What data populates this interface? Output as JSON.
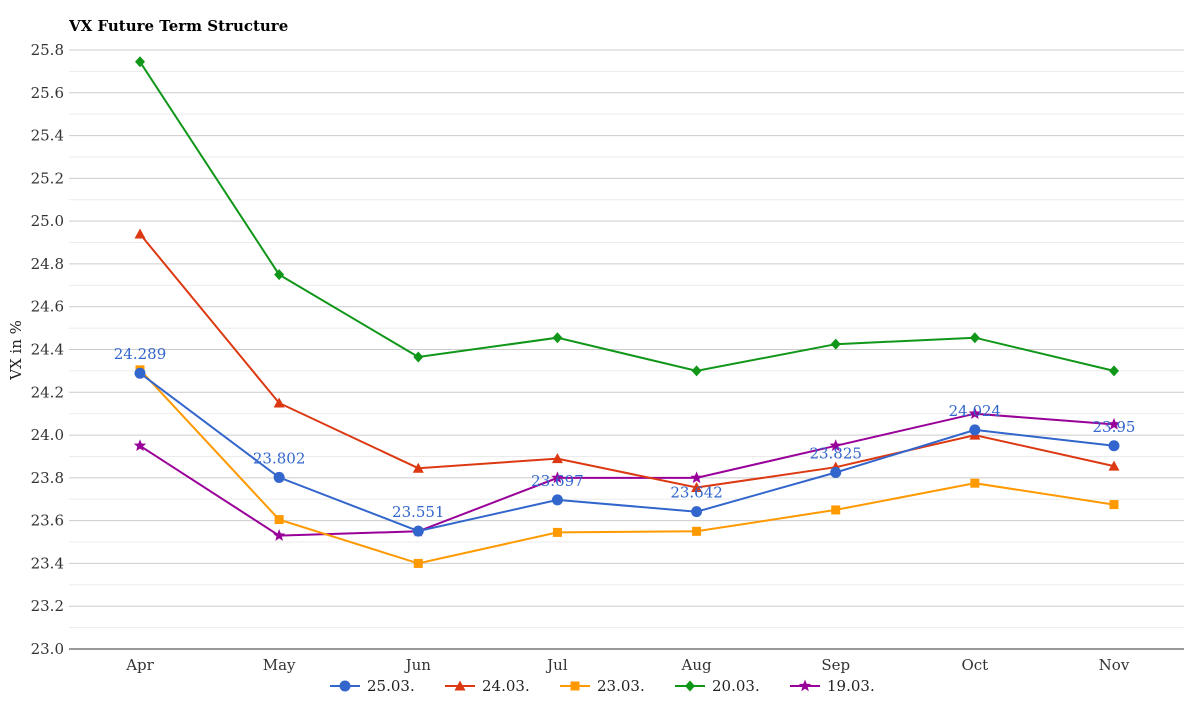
{
  "chart_data": {
    "type": "line",
    "title": "VX Future Term Structure",
    "xlabel": "",
    "ylabel": "VX in %",
    "categories": [
      "Apr",
      "May",
      "Jun",
      "Jul",
      "Aug",
      "Sep",
      "Oct",
      "Nov"
    ],
    "ylim": [
      23.0,
      25.8
    ],
    "yticks": [
      "23.0",
      "23.2",
      "23.4",
      "23.6",
      "23.8",
      "24.0",
      "24.2",
      "24.4",
      "24.6",
      "24.8",
      "25.0",
      "25.2",
      "25.4",
      "25.6",
      "25.8"
    ],
    "grid": true,
    "legend_position": "bottom",
    "series": [
      {
        "name": "25.03.",
        "color": "#3366cc",
        "marker": "circle",
        "values": [
          24.289,
          23.802,
          23.551,
          23.697,
          23.642,
          23.825,
          24.024,
          23.95
        ],
        "labels": [
          "24.289",
          "23.802",
          "23.551",
          "23.697",
          "23.642",
          "23.825",
          "24.024",
          "23.95"
        ]
      },
      {
        "name": "24.03.",
        "color": "#dc3912",
        "marker": "triangle",
        "values": [
          24.94,
          24.15,
          23.845,
          23.89,
          23.755,
          23.85,
          24.0,
          23.855
        ]
      },
      {
        "name": "23.03.",
        "color": "#ff9900",
        "marker": "square",
        "values": [
          24.305,
          23.605,
          23.4,
          23.545,
          23.55,
          23.65,
          23.775,
          23.675
        ]
      },
      {
        "name": "20.03.",
        "color": "#109618",
        "marker": "diamond",
        "values": [
          25.745,
          24.75,
          24.365,
          24.455,
          24.3,
          24.425,
          24.455,
          24.3
        ]
      },
      {
        "name": "19.03.",
        "color": "#990099",
        "marker": "star",
        "values": [
          23.95,
          23.53,
          23.55,
          23.8,
          23.8,
          23.95,
          24.1,
          24.05
        ]
      }
    ]
  }
}
